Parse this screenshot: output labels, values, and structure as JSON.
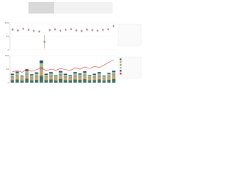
{
  "chart_data": [
    {
      "type": "errorbar",
      "categories": [
        null,
        null,
        null,
        null,
        null,
        null,
        null,
        null,
        null,
        null,
        null,
        null,
        null,
        null,
        null,
        null,
        null,
        null,
        null,
        null
      ],
      "values": [
        75,
        72,
        78,
        74,
        70,
        68,
        30,
        73,
        76,
        71,
        74,
        77,
        72,
        70,
        75,
        73,
        71,
        74,
        76,
        88
      ],
      "errors": [
        5,
        6,
        4,
        5,
        6,
        5,
        25,
        5,
        4,
        6,
        5,
        4,
        6,
        5,
        5,
        4,
        6,
        5,
        4,
        5
      ],
      "color": "#b08f86",
      "ylim": [
        0,
        100
      ],
      "yticks": [
        0,
        50,
        100
      ],
      "grid": true
    },
    {
      "type": "stacked-bar-line",
      "categories": [
        null,
        null,
        null,
        null,
        null,
        null,
        null,
        null,
        null,
        null,
        null,
        null,
        null,
        null,
        null,
        null,
        null,
        null,
        null,
        null,
        null,
        null
      ],
      "series": [
        {
          "color": "#3f6f63",
          "values": [
            10,
            12,
            8,
            15,
            9,
            11,
            25,
            10,
            12,
            8,
            14,
            10,
            9,
            12,
            11,
            13,
            9,
            10,
            12,
            8,
            11,
            14
          ]
        },
        {
          "color": "#c9a46a",
          "values": [
            8,
            10,
            6,
            12,
            7,
            9,
            20,
            8,
            9,
            7,
            10,
            8,
            7,
            9,
            8,
            10,
            7,
            8,
            9,
            6,
            9,
            11
          ]
        },
        {
          "color": "#9a9a9a",
          "values": [
            6,
            8,
            5,
            9,
            6,
            7,
            15,
            6,
            7,
            5,
            8,
            6,
            5,
            7,
            6,
            8,
            5,
            6,
            7,
            5,
            7,
            8
          ]
        },
        {
          "color": "#9cc98a",
          "values": [
            5,
            6,
            4,
            7,
            5,
            6,
            12,
            5,
            6,
            4,
            6,
            5,
            4,
            6,
            5,
            6,
            4,
            5,
            6,
            4,
            5,
            6
          ]
        },
        {
          "color": "#2d4a6a",
          "values": [
            4,
            5,
            3,
            6,
            4,
            5,
            10,
            4,
            5,
            3,
            5,
            4,
            3,
            5,
            4,
            5,
            3,
            4,
            5,
            3,
            4,
            5
          ]
        },
        {
          "color": "#e0302c",
          "axis": "y2",
          "values": [
            40,
            45,
            38,
            50,
            42,
            48,
            55,
            44,
            50,
            46,
            52,
            48,
            45,
            55,
            50,
            58,
            52,
            60,
            56,
            65,
            75,
            85
          ]
        }
      ],
      "ylim": [
        0,
        100
      ],
      "yticks": [
        0,
        50,
        100
      ],
      "y2lim": [
        0,
        100
      ],
      "grid": true
    }
  ]
}
